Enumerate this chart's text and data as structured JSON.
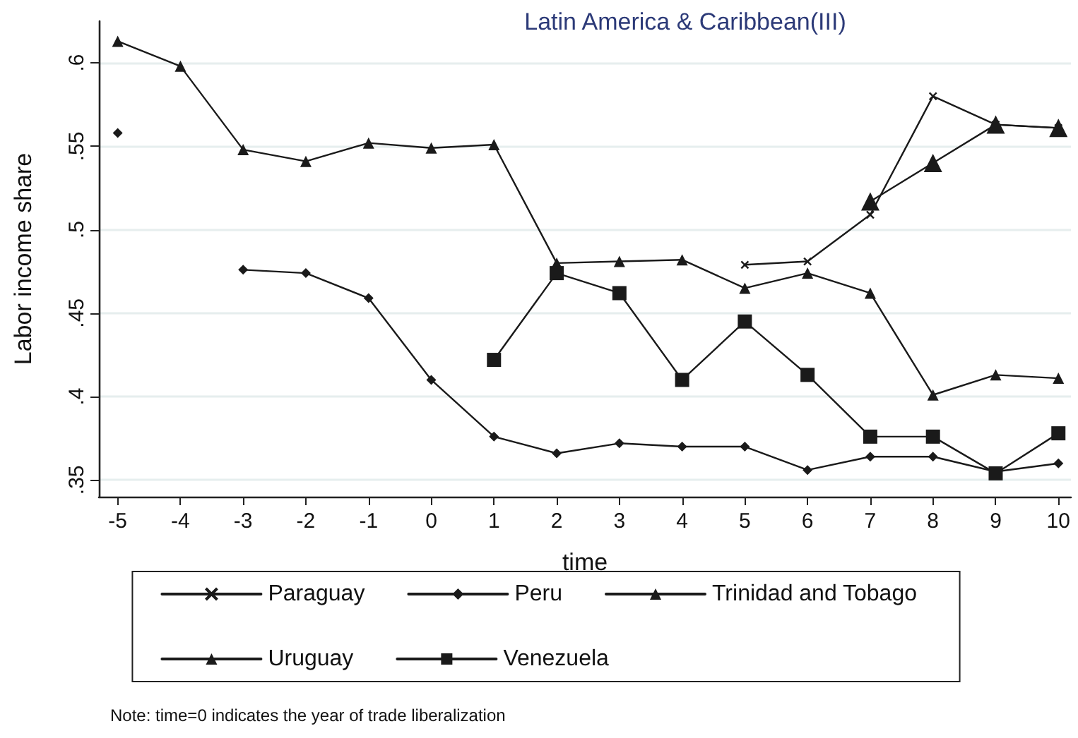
{
  "chart_data": {
    "type": "line",
    "title": "Latin America & Caribbean(III)",
    "xlabel": "time",
    "ylabel": "Labor income share",
    "x": [
      -5,
      -4,
      -3,
      -2,
      -1,
      0,
      1,
      2,
      3,
      4,
      5,
      6,
      7,
      8,
      9,
      10
    ],
    "series": [
      {
        "name": "Paraguay",
        "color": "#1a1a1a",
        "marker": "cross",
        "values": [
          null,
          null,
          null,
          null,
          null,
          null,
          null,
          null,
          null,
          null,
          0.479,
          0.481,
          0.509,
          0.58,
          0.563,
          0.561
        ]
      },
      {
        "name": "Peru",
        "color": "#1a1a1a",
        "marker": "diamond",
        "values": [
          0.558,
          null,
          0.476,
          0.474,
          0.459,
          0.41,
          0.376,
          0.366,
          0.372,
          0.37,
          0.37,
          0.356,
          0.364,
          0.364,
          0.355,
          0.36
        ]
      },
      {
        "name": "Trinidad and Tobago",
        "color": "#1a1a1a",
        "marker": "triangle",
        "values": [
          0.613,
          0.598,
          0.548,
          0.541,
          0.552,
          0.549,
          0.551,
          0.48,
          0.481,
          0.482,
          0.465,
          0.474,
          0.462,
          0.401,
          0.413,
          0.411
        ]
      },
      {
        "name": "Uruguay",
        "color": "#1a1a1a",
        "marker": "triangle",
        "values": [
          null,
          null,
          null,
          null,
          null,
          null,
          null,
          null,
          null,
          null,
          null,
          null,
          0.517,
          0.54,
          0.563,
          0.561
        ]
      },
      {
        "name": "Venezuela",
        "color": "#1a1a1a",
        "marker": "square",
        "values": [
          null,
          null,
          null,
          null,
          null,
          null,
          0.422,
          0.474,
          0.462,
          0.41,
          0.445,
          0.413,
          0.376,
          0.376,
          0.354,
          0.378
        ]
      }
    ],
    "xlim": [
      -5.3,
      10.2
    ],
    "xticks": [
      -5,
      -4,
      -3,
      -2,
      -1,
      0,
      1,
      2,
      3,
      4,
      5,
      6,
      7,
      8,
      9,
      10
    ],
    "ylim": [
      0.34,
      0.625
    ],
    "yticks": [
      {
        "value": 0.35,
        "label": ".35"
      },
      {
        "value": 0.4,
        "label": ".4"
      },
      {
        "value": 0.45,
        "label": ".45"
      },
      {
        "value": 0.5,
        "label": ".5"
      },
      {
        "value": 0.55,
        "label": ".55"
      },
      {
        "value": 0.6,
        "label": ".6"
      }
    ],
    "grid": "y",
    "legend": "bottom",
    "line_style": "solid",
    "annotations": [
      "Note: time=0 indicates the year of trade liberalization"
    ]
  }
}
